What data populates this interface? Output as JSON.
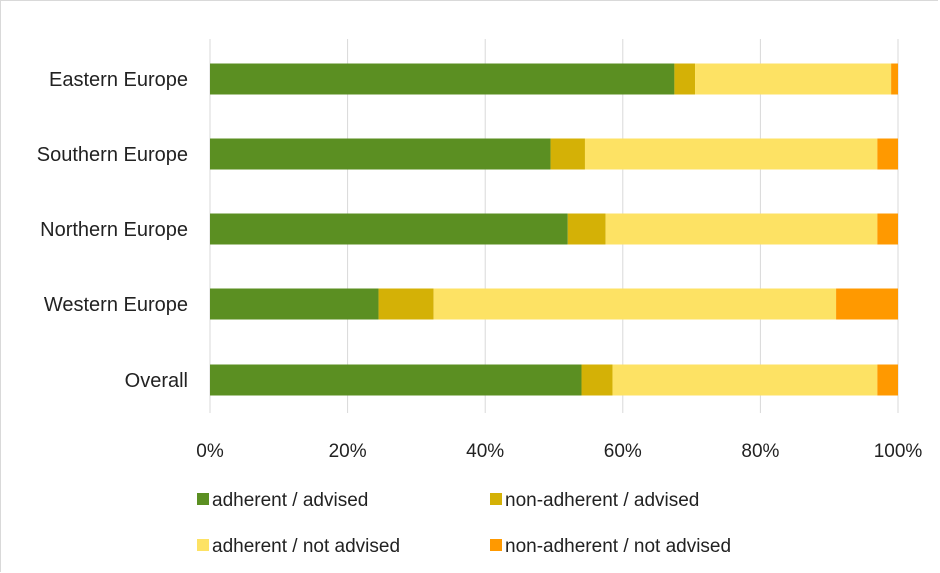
{
  "chart_data": {
    "type": "bar",
    "orientation": "horizontal",
    "stacked": "percent",
    "categories": [
      "Eastern Europe",
      "Southern Europe",
      "Northern Europe",
      "Western Europe",
      "Overall"
    ],
    "series": [
      {
        "name": "adherent / advised",
        "color": "#5b8f22",
        "values": [
          67.5,
          49.5,
          52.0,
          24.5,
          54.0
        ]
      },
      {
        "name": "non-adherent / advised",
        "color": "#d4b106",
        "values": [
          3.0,
          5.0,
          5.5,
          8.0,
          4.5
        ]
      },
      {
        "name": "adherent / not advised",
        "color": "#fde264",
        "values": [
          28.5,
          42.5,
          39.5,
          58.5,
          38.5
        ]
      },
      {
        "name": "non-adherent / not advised",
        "color": "#ff9900",
        "values": [
          1.0,
          3.0,
          3.0,
          9.0,
          3.0
        ]
      }
    ],
    "xticks": [
      "0%",
      "20%",
      "40%",
      "60%",
      "80%",
      "100%"
    ],
    "xlim": [
      0,
      100
    ],
    "grid": true,
    "legend_position": "bottom",
    "title": "",
    "xlabel": "",
    "ylabel": ""
  }
}
